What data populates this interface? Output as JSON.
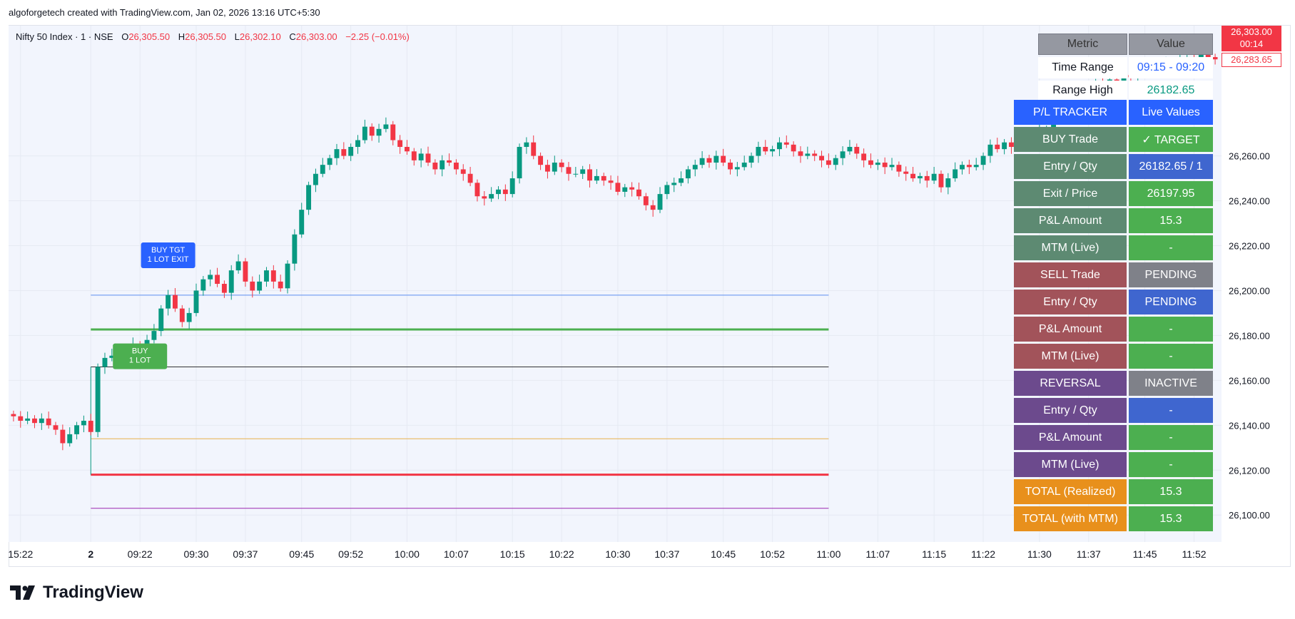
{
  "header": {
    "attribution": "algoforgetech created with TradingView.com, Jan 02, 2026 13:16 UTC+5:30"
  },
  "legend": {
    "symbol": "Nifty 50 Index · 1 · NSE",
    "open_label": "O",
    "open": "26,305.50",
    "high_label": "H",
    "high": "26,305.50",
    "low_label": "L",
    "low": "26,302.10",
    "close_label": "C",
    "close": "26,303.00",
    "change": "−2.25 (−0.01%)"
  },
  "price_badge": {
    "price": "26,303.00",
    "countdown": "00:14",
    "secondary": "26,283.65"
  },
  "colors": {
    "up": "#089981",
    "down": "#f23645",
    "background": "#f2f5fd",
    "grid": "#e6eaf3"
  },
  "chart_data": {
    "type": "candlestick",
    "title": "",
    "xlabel": "",
    "ylabel": "",
    "ylim": [
      26088,
      26318
    ],
    "y_ticks": [
      "26,260.00",
      "26,240.00",
      "26,220.00",
      "26,200.00",
      "26,180.00",
      "26,160.00",
      "26,140.00",
      "26,120.00",
      "26,100.00"
    ],
    "y_tick_values": [
      26260,
      26240,
      26220,
      26200,
      26180,
      26160,
      26140,
      26120,
      26100
    ],
    "x_ticks": [
      "15:22",
      "2",
      "09:22",
      "09:30",
      "09:37",
      "09:45",
      "09:52",
      "10:00",
      "10:07",
      "10:15",
      "10:22",
      "10:30",
      "10:37",
      "10:45",
      "10:52",
      "11:00",
      "11:07",
      "11:15",
      "11:22",
      "11:30",
      "11:37",
      "11:45",
      "11:52"
    ],
    "x_tick_index": [
      1,
      11,
      18,
      26,
      33,
      41,
      48,
      56,
      63,
      71,
      78,
      86,
      93,
      101,
      108,
      116,
      123,
      131,
      138,
      146,
      153,
      161,
      168
    ],
    "grid": true,
    "closes": [
      26144,
      26142,
      26143,
      26141,
      26143,
      26140,
      26138,
      26132,
      26136,
      26140,
      26142,
      26137,
      26166,
      26170,
      26171,
      26169,
      26173,
      26176,
      26175,
      26178,
      26182,
      26192,
      26198,
      26192,
      26186,
      26190,
      26200,
      26205,
      26207,
      26203,
      26199,
      26209,
      26213,
      26204,
      26200,
      26204,
      26209,
      26204,
      26201,
      26212,
      26225,
      26236,
      26247,
      26252,
      26256,
      26259,
      26263,
      26260,
      26264,
      26267,
      26273,
      26269,
      26272,
      26274,
      26267,
      26264,
      26262,
      26258,
      26261,
      26257,
      26254,
      26258,
      26257,
      26254,
      26252,
      26248,
      26242,
      26241,
      26243,
      26245,
      26243,
      26250,
      26264,
      26266,
      26260,
      26256,
      26253,
      26257,
      26255,
      26252,
      26252,
      26254,
      26249,
      26251,
      26249,
      26248,
      26244,
      26246,
      26245,
      26242,
      26238,
      26236,
      26243,
      26247,
      26248,
      26250,
      26254,
      26256,
      26259,
      26257,
      26260,
      26257,
      26254,
      26255,
      26257,
      26260,
      26264,
      26262,
      26263,
      26266,
      26265,
      26262,
      26260,
      26261,
      26260,
      26258,
      26256,
      26259,
      26262,
      26264,
      26261,
      26258,
      26256,
      26257,
      26255,
      26256,
      26253,
      26252,
      26250,
      26251,
      26249,
      26252,
      26246,
      26250,
      26254,
      26256,
      26255,
      26256,
      26260,
      26265,
      26263,
      26266,
      26264,
      26268,
      26265,
      26266,
      26271,
      26272,
      26276,
      26280,
      26283,
      26286,
      26290,
      26288,
      26292,
      26291,
      26294,
      26293,
      26296,
      26295,
      26297,
      26299,
      26300,
      26298,
      26301,
      26302,
      26303,
      26304,
      26303,
      26305,
      26304,
      26303
    ],
    "levels": [
      {
        "value": 26197.95,
        "color": "#5b8def",
        "width": 1
      },
      {
        "value": 26182.65,
        "color": "#4caf50",
        "width": 3
      },
      {
        "value": 26166,
        "color": "#333333",
        "width": 1
      },
      {
        "value": 26134,
        "color": "#e8b04c",
        "width": 1
      },
      {
        "value": 26118,
        "color": "#f23645",
        "width": 3
      },
      {
        "value": 26103,
        "color": "#9c27b0",
        "width": 1
      }
    ],
    "markers": [
      {
        "text1": "BUY TGT",
        "text2": "1 LOT EXIT",
        "bar": 22,
        "price": 26210,
        "color": "#2962ff"
      },
      {
        "text1": "BUY",
        "text2": "1 LOT",
        "bar": 18,
        "price": 26165,
        "color": "#4caf50"
      }
    ]
  },
  "back_table": {
    "header": [
      "Metric",
      "Value"
    ],
    "rows": [
      {
        "label": "Time Range",
        "value": "09:15 - 09:20"
      },
      {
        "label": "Range High",
        "value": "26182.65"
      }
    ]
  },
  "tracker": {
    "header": {
      "label": "P/L TRACKER",
      "value": "Live Values"
    },
    "rows": [
      {
        "label": "BUY Trade",
        "value": "✓ TARGET",
        "lbg": "#5d8a72",
        "vbg": "#4caf50"
      },
      {
        "label": "Entry / Qty",
        "value": "26182.65 / 1",
        "lbg": "#5d8a72",
        "vbg": "#3f66cf"
      },
      {
        "label": "Exit / Price",
        "value": "26197.95",
        "lbg": "#5d8a72",
        "vbg": "#4caf50"
      },
      {
        "label": "P&L Amount",
        "value": "15.3",
        "lbg": "#5d8a72",
        "vbg": "#4caf50"
      },
      {
        "label": "MTM (Live)",
        "value": "-",
        "lbg": "#5d8a72",
        "vbg": "#4caf50"
      },
      {
        "label": "SELL Trade",
        "value": "PENDING",
        "lbg": "#a2535a",
        "vbg": "#7f8189"
      },
      {
        "label": "Entry / Qty",
        "value": "PENDING",
        "lbg": "#a2535a",
        "vbg": "#3f66cf"
      },
      {
        "label": "P&L Amount",
        "value": "-",
        "lbg": "#a2535a",
        "vbg": "#4caf50"
      },
      {
        "label": "MTM (Live)",
        "value": "-",
        "lbg": "#a2535a",
        "vbg": "#4caf50"
      },
      {
        "label": "REVERSAL",
        "value": "INACTIVE",
        "lbg": "#6c4a8d",
        "vbg": "#7f8189"
      },
      {
        "label": "Entry / Qty",
        "value": "-",
        "lbg": "#6c4a8d",
        "vbg": "#3f66cf"
      },
      {
        "label": "P&L Amount",
        "value": "-",
        "lbg": "#6c4a8d",
        "vbg": "#4caf50"
      },
      {
        "label": "MTM (Live)",
        "value": "-",
        "lbg": "#6c4a8d",
        "vbg": "#4caf50"
      },
      {
        "label": "TOTAL (Realized)",
        "value": "15.3",
        "lbg": "#e8901c",
        "vbg": "#4caf50"
      },
      {
        "label": "TOTAL (with MTM)",
        "value": "15.3",
        "lbg": "#e8901c",
        "vbg": "#4caf50"
      }
    ]
  },
  "logo": {
    "text": "TradingView"
  }
}
